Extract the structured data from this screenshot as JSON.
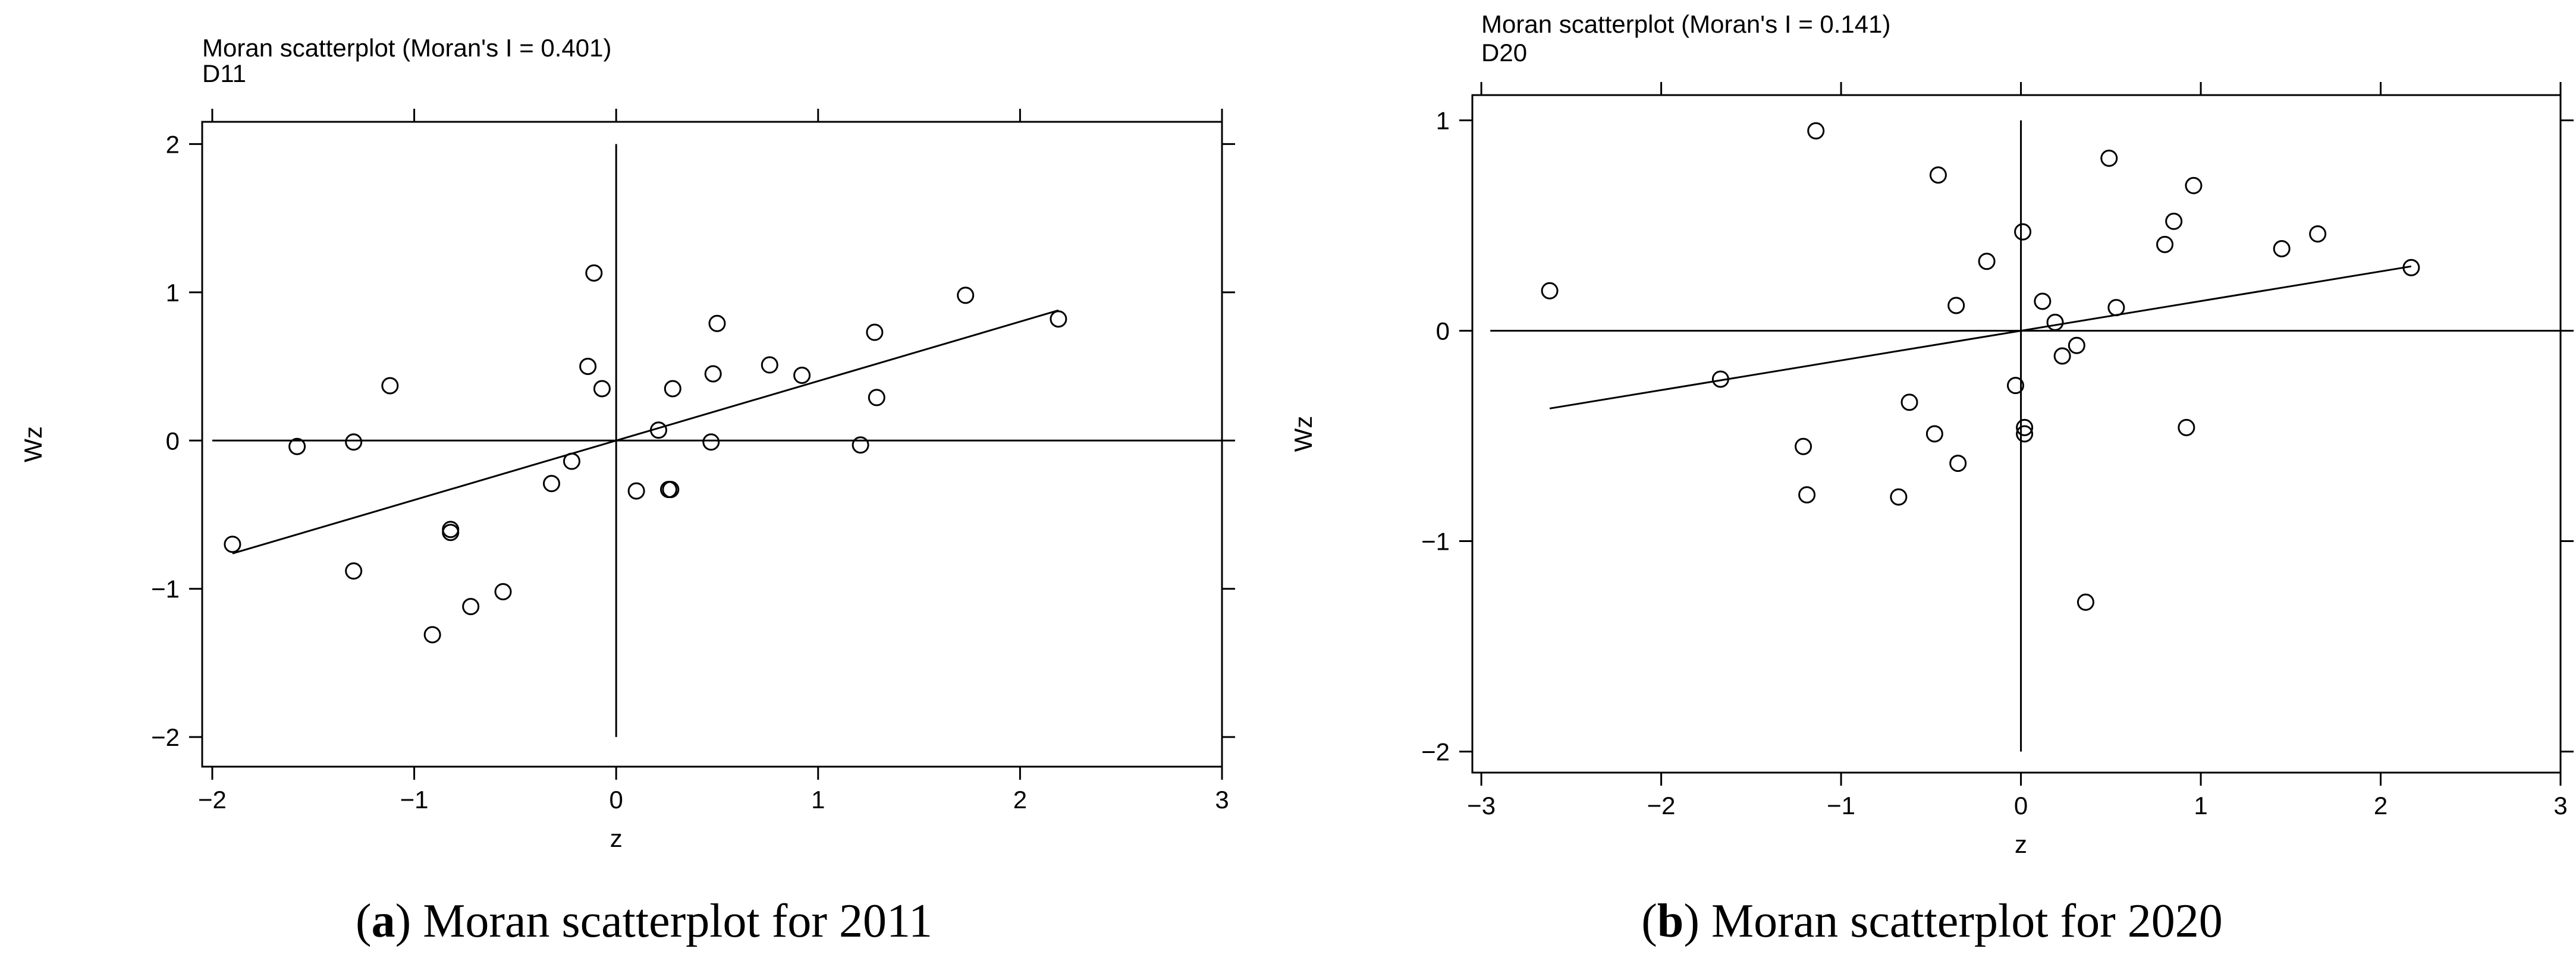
{
  "charts": [
    {
      "id": "a",
      "title": "Moran scatterplot (Moran's I = 0.401)",
      "subtitle": "D11",
      "caption_letter": "a",
      "caption_text": "Moran scatterplot for 2011",
      "colors": {
        "line": "#000000",
        "marker": "#000000",
        "background": "#ffffff"
      }
    },
    {
      "id": "b",
      "title": "Moran scatterplot (Moran's I = 0.141)",
      "subtitle": "D20",
      "caption_letter": "b",
      "caption_text": "Moran scatterplot for 2020",
      "colors": {
        "line": "#000000",
        "marker": "#000000",
        "background": "#ffffff"
      }
    }
  ],
  "chart_data": [
    {
      "type": "scatter",
      "title": "Moran scatterplot (Moran's I = 0.401)",
      "subtitle": "D11",
      "xlabel": "z",
      "ylabel": "Wz",
      "xlim": [
        -2.05,
        3.0
      ],
      "ylim": [
        -2.2,
        2.15
      ],
      "xticks": [
        -2,
        -1,
        0,
        1,
        2,
        3
      ],
      "xtick_labels": [
        "−2",
        "−1",
        "0",
        "1",
        "2",
        "3"
      ],
      "yticks": [
        -2,
        -1,
        0,
        1,
        2
      ],
      "ytick_labels": [
        "−2",
        "−1",
        "0",
        "1",
        "2"
      ],
      "grid": false,
      "reference_lines": {
        "horizontal_y": 0,
        "vertical_x": 0,
        "hline_x": [
          -2.0,
          3.0
        ],
        "vline_y": [
          -2.0,
          2.0
        ]
      },
      "fit_line": {
        "slope": 0.401,
        "x": [
          -1.9,
          2.19
        ]
      },
      "points": [
        {
          "x": -1.9,
          "y": -0.7
        },
        {
          "x": -1.58,
          "y": -0.04
        },
        {
          "x": -1.3,
          "y": -0.01
        },
        {
          "x": -1.3,
          "y": -0.88
        },
        {
          "x": -1.12,
          "y": 0.37
        },
        {
          "x": -0.82,
          "y": -0.6
        },
        {
          "x": -0.82,
          "y": -0.62
        },
        {
          "x": -0.91,
          "y": -1.31
        },
        {
          "x": -0.72,
          "y": -1.12
        },
        {
          "x": -0.56,
          "y": -1.02
        },
        {
          "x": -0.32,
          "y": -0.29
        },
        {
          "x": -0.22,
          "y": -0.14
        },
        {
          "x": -0.14,
          "y": 0.5
        },
        {
          "x": -0.11,
          "y": 1.13
        },
        {
          "x": -0.07,
          "y": 0.35
        },
        {
          "x": 0.1,
          "y": -0.34
        },
        {
          "x": 0.21,
          "y": 0.07
        },
        {
          "x": 0.26,
          "y": -0.33
        },
        {
          "x": 0.27,
          "y": -0.33
        },
        {
          "x": 0.28,
          "y": 0.35
        },
        {
          "x": 0.47,
          "y": -0.01
        },
        {
          "x": 0.48,
          "y": 0.45
        },
        {
          "x": 0.5,
          "y": 0.79
        },
        {
          "x": 0.76,
          "y": 0.51
        },
        {
          "x": 0.92,
          "y": 0.44
        },
        {
          "x": 1.21,
          "y": -0.03
        },
        {
          "x": 1.28,
          "y": 0.73
        },
        {
          "x": 1.29,
          "y": 0.29
        },
        {
          "x": 1.73,
          "y": 0.98
        },
        {
          "x": 2.19,
          "y": 0.82
        }
      ]
    },
    {
      "type": "scatter",
      "title": "Moran scatterplot (Moran's I = 0.141)",
      "subtitle": "D20",
      "xlabel": "z",
      "ylabel": "Wz",
      "xlim": [
        -3.05,
        3.0
      ],
      "ylim": [
        -2.1,
        1.12
      ],
      "xticks": [
        -3,
        -2,
        -1,
        0,
        1,
        2,
        3
      ],
      "xtick_labels": [
        "−3",
        "−2",
        "−1",
        "0",
        "1",
        "2",
        "3"
      ],
      "yticks": [
        -2,
        -1,
        0,
        1
      ],
      "ytick_labels": [
        "−2",
        "−1",
        "0",
        "1"
      ],
      "grid": false,
      "reference_lines": {
        "horizontal_y": 0,
        "vertical_x": 0,
        "hline_x": [
          -2.95,
          3.0
        ],
        "vline_y": [
          -2.0,
          1.0
        ]
      },
      "fit_line": {
        "slope": 0.141,
        "x": [
          -2.62,
          2.17
        ]
      },
      "points": [
        {
          "x": -2.62,
          "y": 0.19
        },
        {
          "x": -1.67,
          "y": -0.23
        },
        {
          "x": -1.21,
          "y": -0.55
        },
        {
          "x": -1.19,
          "y": -0.78
        },
        {
          "x": -1.14,
          "y": 0.95
        },
        {
          "x": -0.68,
          "y": -0.79
        },
        {
          "x": -0.62,
          "y": -0.34
        },
        {
          "x": -0.48,
          "y": -0.49
        },
        {
          "x": -0.46,
          "y": 0.74
        },
        {
          "x": -0.36,
          "y": 0.12
        },
        {
          "x": -0.35,
          "y": -0.63
        },
        {
          "x": -0.19,
          "y": 0.33
        },
        {
          "x": -0.03,
          "y": -0.26
        },
        {
          "x": 0.01,
          "y": 0.47
        },
        {
          "x": 0.02,
          "y": -0.46
        },
        {
          "x": 0.02,
          "y": -0.49
        },
        {
          "x": 0.12,
          "y": 0.14
        },
        {
          "x": 0.19,
          "y": 0.04
        },
        {
          "x": 0.23,
          "y": -0.12
        },
        {
          "x": 0.31,
          "y": -0.07
        },
        {
          "x": 0.36,
          "y": -1.29
        },
        {
          "x": 0.49,
          "y": 0.82
        },
        {
          "x": 0.53,
          "y": 0.11
        },
        {
          "x": 0.8,
          "y": 0.41
        },
        {
          "x": 0.85,
          "y": 0.52
        },
        {
          "x": 0.92,
          "y": -0.46
        },
        {
          "x": 0.96,
          "y": 0.69
        },
        {
          "x": 1.45,
          "y": 0.39
        },
        {
          "x": 1.65,
          "y": 0.46
        },
        {
          "x": 2.17,
          "y": 0.3
        }
      ]
    }
  ]
}
